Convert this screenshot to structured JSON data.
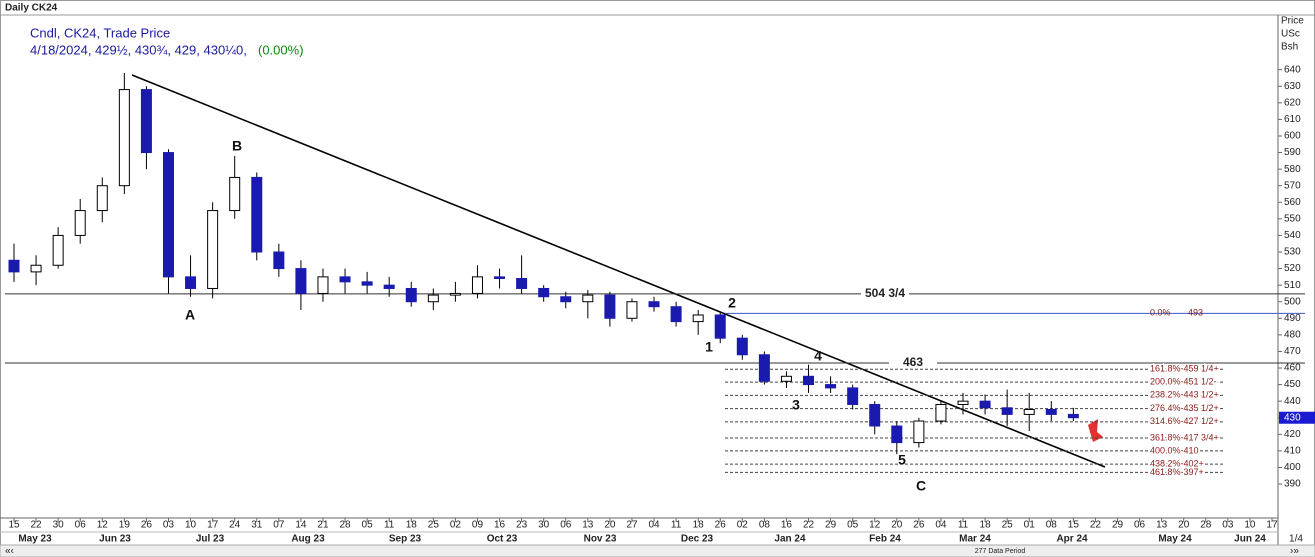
{
  "chart_data": {
    "type": "candlestick",
    "title": "Daily CK24",
    "subtitle": "Cndl, CK24, Trade Price",
    "quote": "4/18/2024, 429½, 430¾, 429, 430¼0,",
    "change": "(0.00%)",
    "axis_units": [
      "Price",
      "USc",
      "Bsh"
    ],
    "ylim": [
      369.5,
      673
    ],
    "yticks": [
      390,
      400,
      410,
      420,
      430,
      440,
      450,
      460,
      470,
      480,
      490,
      500,
      510,
      520,
      530,
      540,
      550,
      560,
      570,
      580,
      590,
      600,
      610,
      620,
      630,
      640
    ],
    "categories": [
      "15",
      "22",
      "30",
      "06",
      "12",
      "19",
      "26",
      "03",
      "10",
      "17",
      "24",
      "31",
      "07",
      "14",
      "21",
      "28",
      "05",
      "11",
      "18",
      "25",
      "02",
      "09",
      "16",
      "23",
      "30",
      "06",
      "13",
      "20",
      "27",
      "04",
      "11",
      "18",
      "26",
      "02",
      "08",
      "16",
      "22",
      "29",
      "05",
      "12",
      "20",
      "26",
      "04",
      "11",
      "18",
      "25",
      "01",
      "08",
      "15",
      "22",
      "29",
      "06",
      "13",
      "20",
      "28",
      "03",
      "10",
      "17"
    ],
    "months": [
      "May 23",
      "Jun 23",
      "Jul 23",
      "Aug 23",
      "Sep 23",
      "Oct 23",
      "Nov 23",
      "Dec 23",
      "Jan 24",
      "Feb 24",
      "Mar 24",
      "Apr 24",
      "May 24",
      "Jun 24"
    ],
    "up_color": "#ffffff",
    "down_color": "#1a1aaf",
    "candles": [
      [
        525,
        535,
        512,
        518
      ],
      [
        518,
        528,
        510,
        522
      ],
      [
        522,
        545,
        520,
        540
      ],
      [
        540,
        562,
        535,
        555
      ],
      [
        555,
        575,
        548,
        570
      ],
      [
        570,
        638,
        565,
        628
      ],
      [
        628,
        630,
        580,
        590
      ],
      [
        590,
        592,
        505,
        515
      ],
      [
        515,
        528,
        503,
        508
      ],
      [
        508,
        560,
        502,
        555
      ],
      [
        555,
        588,
        550,
        575
      ],
      [
        575,
        578,
        525,
        530
      ],
      [
        530,
        535,
        515,
        520
      ],
      [
        520,
        525,
        495,
        505
      ],
      [
        505,
        520,
        500,
        515
      ],
      [
        515,
        520,
        505,
        512
      ],
      [
        512,
        518,
        505,
        510
      ],
      [
        510,
        515,
        503,
        508
      ],
      [
        508,
        512,
        497,
        500
      ],
      [
        500,
        508,
        495,
        504
      ],
      [
        504,
        512,
        500,
        505
      ],
      [
        505,
        522,
        502,
        515
      ],
      [
        515,
        520,
        508,
        514
      ],
      [
        514,
        528,
        505,
        508
      ],
      [
        508,
        510,
        500,
        503
      ],
      [
        503,
        506,
        496,
        500
      ],
      [
        500,
        507,
        490,
        504
      ],
      [
        504,
        506,
        485,
        490
      ],
      [
        490,
        502,
        488,
        500
      ],
      [
        500,
        503,
        494,
        497
      ],
      [
        497,
        500,
        485,
        488
      ],
      [
        488,
        495,
        480,
        492
      ],
      [
        492,
        494,
        475,
        478
      ],
      [
        478,
        480,
        465,
        468
      ],
      [
        468,
        470,
        450,
        452
      ],
      [
        452,
        458,
        448,
        455
      ],
      [
        455,
        462,
        445,
        450
      ],
      [
        450,
        455,
        445,
        448
      ],
      [
        448,
        450,
        435,
        438
      ],
      [
        438,
        440,
        420,
        425
      ],
      [
        425,
        428,
        408,
        415
      ],
      [
        415,
        430,
        412,
        428
      ],
      [
        428,
        440,
        426,
        438
      ],
      [
        438,
        445,
        432,
        440
      ],
      [
        440,
        444,
        432,
        436
      ],
      [
        436,
        447,
        425,
        432
      ],
      [
        432,
        445,
        422,
        435
      ],
      [
        435,
        440,
        428,
        432
      ],
      [
        432,
        436,
        428,
        430
      ],
      null,
      null,
      null,
      null,
      null,
      null,
      null,
      null,
      null
    ],
    "levels": [
      {
        "value": 504.75,
        "label": "504 3/4"
      },
      {
        "value": 463,
        "label": "463"
      }
    ],
    "retrace": {
      "value": 493,
      "pct": "0.0%",
      "label": "493"
    },
    "fib": [
      {
        "value": 459.25,
        "label": "161.8%-459 1/4+"
      },
      {
        "value": 451.5,
        "label": "200.0%-451 1/2-"
      },
      {
        "value": 443.5,
        "label": "238.2%-443 1/2+"
      },
      {
        "value": 435.5,
        "label": "276.4%-435 1/2+"
      },
      {
        "value": 427.5,
        "label": "314.6%-427 1/2+"
      },
      {
        "value": 417.75,
        "label": "361.8%-417 3/4+"
      },
      {
        "value": 410,
        "label": "400.0%-410"
      },
      {
        "value": 402,
        "label": "438.2%-402+"
      },
      {
        "value": 397,
        "label": "461.8%-397+"
      }
    ],
    "waves": [
      "A",
      "B",
      "1",
      "2",
      "3",
      "4",
      "5",
      "C"
    ],
    "last": 430,
    "footer": "277 Data Period",
    "page": "1/4"
  }
}
